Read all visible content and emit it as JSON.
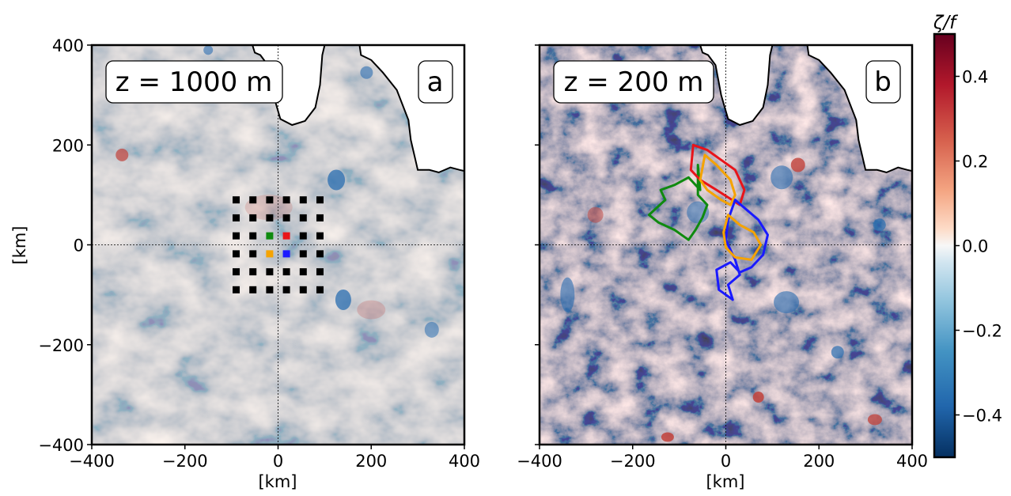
{
  "figure": {
    "panel_a": {
      "box_label": "z = 1000 m",
      "letter": "a"
    },
    "panel_b": {
      "box_label": "z = 200 m",
      "letter": "b"
    }
  },
  "colors": {
    "positive": "#c2413a",
    "negative": "#2a6db0",
    "neutral": "#f7f7f7",
    "coast": "#000000",
    "dot_default": "#000000",
    "dot_green": "#0f8a0f",
    "dot_red": "#e8141a",
    "dot_orange": "#f5a300",
    "dot_blue": "#1a1aff"
  },
  "chart_data": [
    {
      "type": "heatmap",
      "panel": "a",
      "title": "z = 1000 m",
      "xlabel": "[km]",
      "ylabel": "[km]",
      "xlim": [
        -400,
        400
      ],
      "ylim": [
        -400,
        400
      ],
      "xticks": [
        -400,
        -200,
        0,
        200,
        400
      ],
      "yticks": [
        -400,
        -200,
        0,
        200,
        400
      ],
      "xtick_labels": [
        "−400",
        "−200",
        "0",
        "200",
        "400"
      ],
      "ytick_labels": [
        "−400",
        "−200",
        "0",
        "200",
        "400"
      ],
      "field": "relative vorticity ζ/f",
      "reference_lines": {
        "x": 0,
        "y": 0,
        "style": "dashed"
      },
      "deployment_grid": {
        "x": [
          -90,
          -54,
          -18,
          18,
          54,
          90
        ],
        "y": [
          90,
          54,
          18,
          -18,
          -54,
          -90
        ],
        "highlighted": [
          {
            "x": -18,
            "y": 18,
            "color": "green"
          },
          {
            "x": 18,
            "y": 18,
            "color": "red"
          },
          {
            "x": -18,
            "y": -18,
            "color": "orange"
          },
          {
            "x": 18,
            "y": -18,
            "color": "blue"
          }
        ]
      },
      "coastline": [
        [
          -55,
          400
        ],
        [
          -50,
          385
        ],
        [
          -38,
          380
        ],
        [
          -22,
          360
        ],
        [
          -10,
          300
        ],
        [
          5,
          252
        ],
        [
          30,
          240
        ],
        [
          58,
          248
        ],
        [
          80,
          275
        ],
        [
          90,
          320
        ],
        [
          95,
          380
        ],
        [
          100,
          400
        ]
      ],
      "coastline_b": [
        [
          175,
          400
        ],
        [
          178,
          380
        ],
        [
          200,
          370
        ],
        [
          225,
          345
        ],
        [
          255,
          310
        ],
        [
          280,
          250
        ],
        [
          285,
          210
        ],
        [
          300,
          150
        ],
        [
          325,
          150
        ],
        [
          345,
          145
        ],
        [
          370,
          155
        ],
        [
          390,
          150
        ],
        [
          400,
          148
        ]
      ]
    },
    {
      "type": "heatmap",
      "panel": "b",
      "title": "z = 200 m",
      "xlabel": "[km]",
      "ylabel": "",
      "xlim": [
        -400,
        400
      ],
      "ylim": [
        -400,
        400
      ],
      "xticks": [
        -400,
        -200,
        0,
        200,
        400
      ],
      "xtick_labels": [
        "−400",
        "−200",
        "0",
        "200",
        "400"
      ],
      "field": "relative vorticity ζ/f",
      "reference_lines": {
        "x": 0,
        "y": 0,
        "style": "dashed"
      },
      "series": [
        {
          "color": "green",
          "points": [
            [
              -60,
              160
            ],
            [
              -55,
              110
            ],
            [
              -80,
              135
            ],
            [
              -110,
              120
            ],
            [
              -140,
              110
            ],
            [
              -130,
              90
            ],
            [
              -165,
              60
            ],
            [
              -145,
              45
            ],
            [
              -110,
              30
            ],
            [
              -80,
              10
            ],
            [
              -65,
              30
            ],
            [
              -50,
              55
            ],
            [
              -40,
              80
            ],
            [
              -60,
              100
            ]
          ]
        },
        {
          "color": "red",
          "points": [
            [
              -70,
              200
            ],
            [
              -40,
              190
            ],
            [
              -10,
              170
            ],
            [
              20,
              150
            ],
            [
              40,
              110
            ],
            [
              30,
              80
            ],
            [
              5,
              95
            ],
            [
              -20,
              110
            ],
            [
              -55,
              130
            ],
            [
              -75,
              150
            ]
          ]
        },
        {
          "color": "orange",
          "points": [
            [
              -45,
              180
            ],
            [
              -20,
              160
            ],
            [
              10,
              130
            ],
            [
              20,
              100
            ],
            [
              10,
              80
            ],
            [
              -10,
              90
            ],
            [
              -40,
              110
            ],
            [
              -55,
              130
            ],
            [
              -50,
              155
            ]
          ]
        },
        {
          "color": "blue",
          "points": [
            [
              20,
              90
            ],
            [
              45,
              70
            ],
            [
              70,
              50
            ],
            [
              90,
              20
            ],
            [
              80,
              -20
            ],
            [
              55,
              -45
            ],
            [
              30,
              -55
            ],
            [
              10,
              -35
            ],
            [
              -20,
              -50
            ],
            [
              -15,
              -90
            ],
            [
              15,
              -110
            ],
            [
              5,
              -80
            ],
            [
              30,
              -60
            ],
            [
              20,
              -30
            ],
            [
              0,
              10
            ],
            [
              5,
              50
            ]
          ]
        },
        {
          "color": "orange",
          "points": [
            [
              5,
              60
            ],
            [
              30,
              40
            ],
            [
              60,
              25
            ],
            [
              75,
              0
            ],
            [
              55,
              -30
            ],
            [
              20,
              -25
            ],
            [
              0,
              -5
            ],
            [
              -5,
              25
            ]
          ]
        }
      ]
    },
    {
      "type": "colorbar",
      "label": "ζ/f",
      "vmin": -0.5,
      "vmax": 0.5,
      "colormap": "RdBu_r",
      "ticks": [
        0.4,
        0.2,
        0.0,
        -0.2,
        -0.4
      ],
      "tick_labels": [
        "0.4",
        "0.2",
        "0.0",
        "−0.2",
        "−0.4"
      ]
    }
  ]
}
